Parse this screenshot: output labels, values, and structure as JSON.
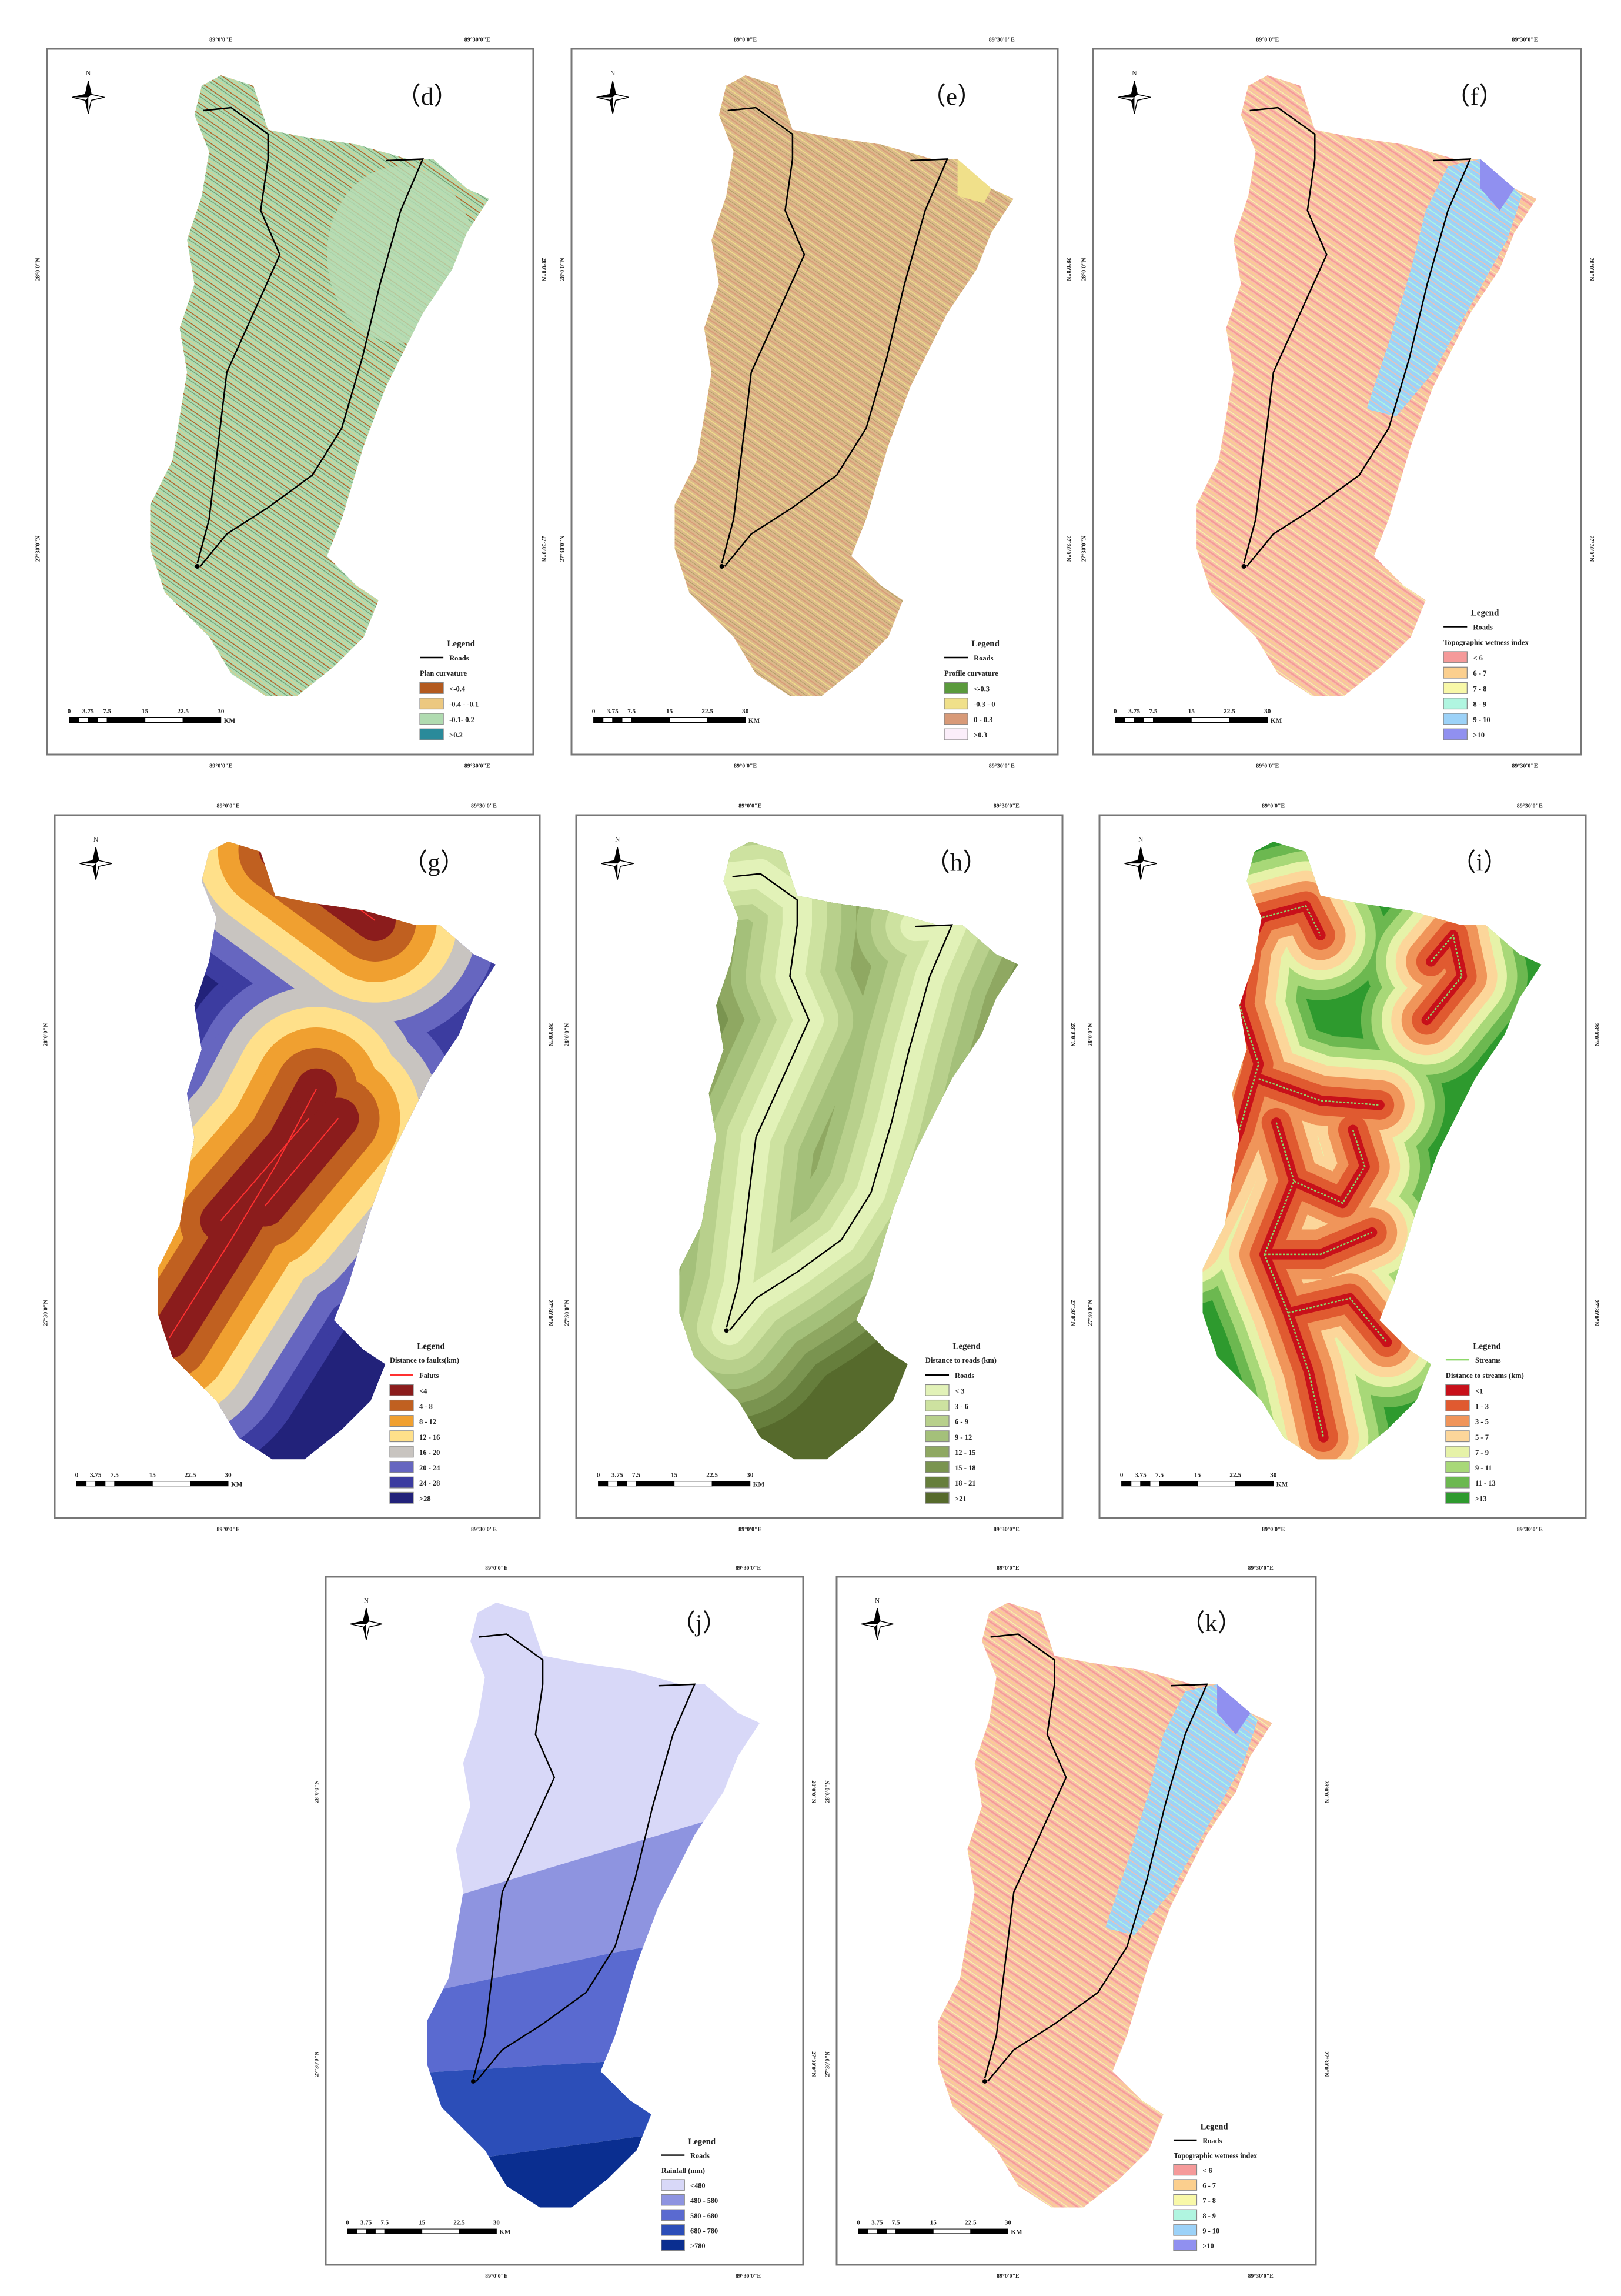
{
  "coords": {
    "lon": [
      "89°0'0\"E",
      "89°30'0\"E"
    ],
    "lat": [
      "28°0'0\"N",
      "27°30'0\"N"
    ]
  },
  "legend_heading": "Legend",
  "north_label": "N",
  "scale_bar": {
    "ticks": [
      "0",
      "3.75",
      "7.5",
      "15",
      "22.5",
      "30"
    ],
    "unit": "KM"
  },
  "panels": [
    {
      "id": "d",
      "label": "（d）",
      "type": "plan_curvature",
      "legend": {
        "title": "Plan curvature",
        "line": {
          "label": "Roads",
          "color": "#000000"
        },
        "classes": [
          {
            "label": "<-0.4",
            "color": "#b35a1f"
          },
          {
            "label": "-0.4 - -0.1",
            "color": "#ecc880"
          },
          {
            "label": "-0.1- 0.2",
            "color": "#b0dbb0"
          },
          {
            "label": ">0.2",
            "color": "#2a8a9a"
          }
        ]
      }
    },
    {
      "id": "e",
      "label": "（e）",
      "type": "profile_curvature",
      "legend": {
        "title": "Profile curvature",
        "line": {
          "label": "Roads",
          "color": "#000000"
        },
        "classes": [
          {
            "label": "<-0.3",
            "color": "#5a9a3c"
          },
          {
            "label": "-0.3 - 0",
            "color": "#f0e08a"
          },
          {
            "label": "0 - 0.3",
            "color": "#d89a78"
          },
          {
            "label": ">0.3",
            "color": "#fbeefa"
          }
        ]
      }
    },
    {
      "id": "f",
      "label": "（f）",
      "type": "twi",
      "legend": {
        "title": "Topographic wetness index",
        "line": {
          "label": "Roads",
          "color": "#000000"
        },
        "classes": [
          {
            "label": "< 6",
            "color": "#f59a9a"
          },
          {
            "label": "6 - 7",
            "color": "#fbcf8e"
          },
          {
            "label": "7 - 8",
            "color": "#f8f8a8"
          },
          {
            "label": "8 - 9",
            "color": "#b0f5e0"
          },
          {
            "label": "9 - 10",
            "color": "#9cd2f8"
          },
          {
            "label": ">10",
            "color": "#9090f0"
          }
        ]
      }
    },
    {
      "id": "g",
      "label": "（g）",
      "type": "fault_distance",
      "legend": {
        "title": "Distance to faults(km)",
        "line": {
          "label": "Faluts",
          "color": "#ff3030"
        },
        "classes": [
          {
            "label": "<4",
            "color": "#8b1c1c"
          },
          {
            "label": "4 - 8",
            "color": "#c06020"
          },
          {
            "label": "8 - 12",
            "color": "#f0a030"
          },
          {
            "label": "12 - 16",
            "color": "#ffe08a"
          },
          {
            "label": "16 - 20",
            "color": "#c8c4c0"
          },
          {
            "label": "20 - 24",
            "color": "#6666c0"
          },
          {
            "label": "24 - 28",
            "color": "#3c3ca0"
          },
          {
            "label": ">28",
            "color": "#22227a"
          }
        ]
      }
    },
    {
      "id": "h",
      "label": "（h）",
      "type": "road_distance",
      "legend": {
        "title": "Distance to roads (km)",
        "line": {
          "label": "Roads",
          "color": "#000000"
        },
        "classes": [
          {
            "label": "< 3",
            "color": "#e2f2b8"
          },
          {
            "label": "3 - 6",
            "color": "#cde2a0"
          },
          {
            "label": "6 - 9",
            "color": "#b8d08c"
          },
          {
            "label": "9 - 12",
            "color": "#a4c07a"
          },
          {
            "label": "12 - 15",
            "color": "#8fa862"
          },
          {
            "label": "15 - 18",
            "color": "#7a9450"
          },
          {
            "label": "18 - 21",
            "color": "#667e3c"
          },
          {
            "label": ">21",
            "color": "#566a2c"
          }
        ]
      }
    },
    {
      "id": "i",
      "label": "（i）",
      "type": "stream_distance",
      "legend": {
        "title": "Distance to streams (km)",
        "line": {
          "label": "Streams",
          "color": "#8dd86a"
        },
        "classes": [
          {
            "label": "<1",
            "color": "#c8101a"
          },
          {
            "label": "1 - 3",
            "color": "#e05a30"
          },
          {
            "label": "3 - 5",
            "color": "#f0955a"
          },
          {
            "label": "5 - 7",
            "color": "#fcd69a"
          },
          {
            "label": "7 - 9",
            "color": "#e6f2a8"
          },
          {
            "label": "9 - 11",
            "color": "#a8d878"
          },
          {
            "label": "11 - 13",
            "color": "#6cb850"
          },
          {
            "label": ">13",
            "color": "#2e9a2e"
          }
        ]
      }
    },
    {
      "id": "j",
      "label": "（j）",
      "type": "rainfall",
      "legend": {
        "title": "Rainfall (mm)",
        "line": {
          "label": "Roads",
          "color": "#000000"
        },
        "classes": [
          {
            "label": "<480",
            "color": "#d8d8f8"
          },
          {
            "label": "480 - 580",
            "color": "#8e94e0"
          },
          {
            "label": "580 - 680",
            "color": "#5a6ad0"
          },
          {
            "label": "680 - 780",
            "color": "#2c4eb8"
          },
          {
            "label": ">780",
            "color": "#0a2e90"
          }
        ]
      }
    },
    {
      "id": "k",
      "label": "（k）",
      "type": "twi",
      "legend": {
        "title": "Topographic wetness index",
        "line": {
          "label": "Roads",
          "color": "#000000"
        },
        "classes": [
          {
            "label": "< 6",
            "color": "#f59a9a"
          },
          {
            "label": "6 - 7",
            "color": "#fbcf8e"
          },
          {
            "label": "7 - 8",
            "color": "#f8f8a8"
          },
          {
            "label": "8 - 9",
            "color": "#b0f5e0"
          },
          {
            "label": "9 - 10",
            "color": "#9cd2f8"
          },
          {
            "label": ">10",
            "color": "#9090f0"
          }
        ]
      }
    }
  ]
}
